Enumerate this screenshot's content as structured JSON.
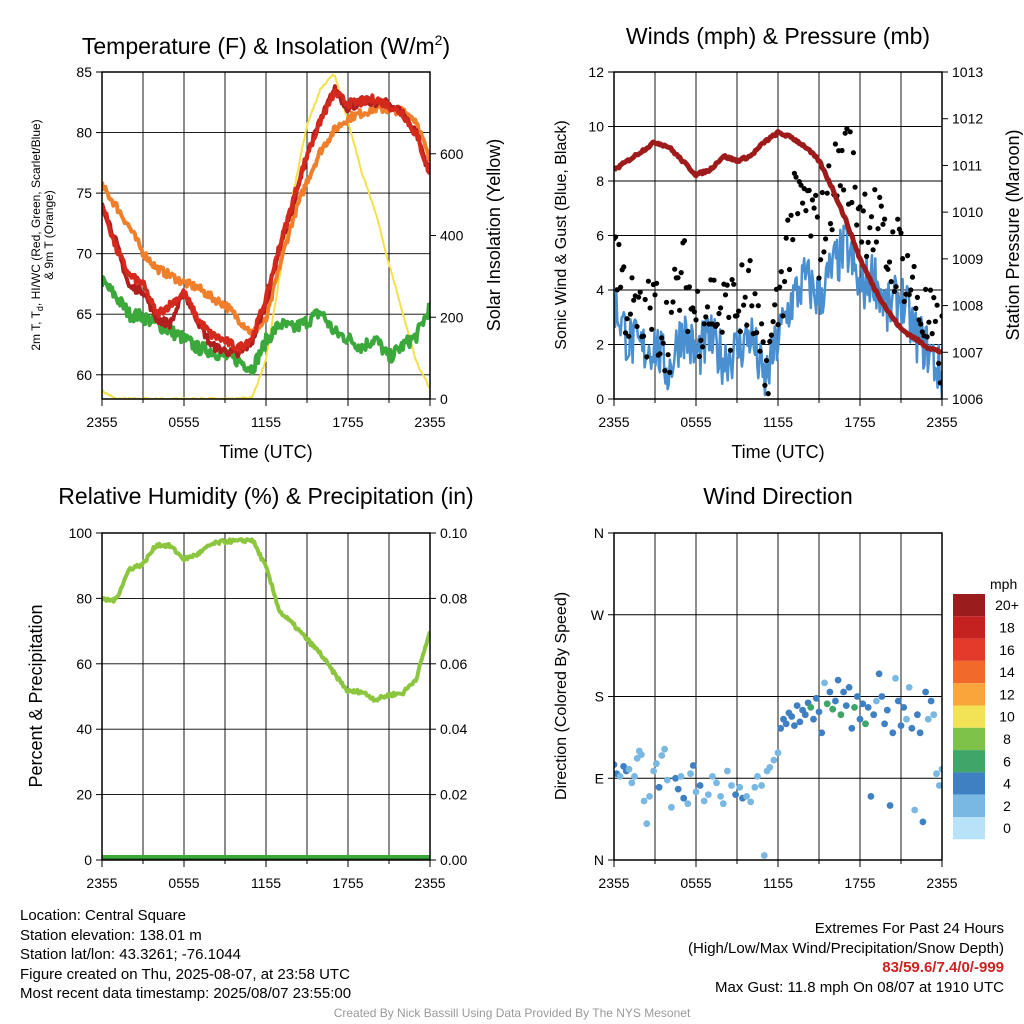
{
  "chart_data": [
    {
      "type": "line",
      "title": "Temperature (F) & Insolation (W/m²)",
      "xlabel": "Time (UTC)",
      "ylabel": "2m T, Td, HI/WC (Red, Green, Scarlet/Blue) & 9m T (Orange)",
      "ylabel_lines": [
        "2m T, T",
        "d",
        ", HI/WC (Red, Green, Scarlet/Blue)",
        "& 9m T (Orange)"
      ],
      "y2label": "Solar Insolation (Yellow)",
      "x_ticks": [
        "2355",
        "0555",
        "1155",
        "1755",
        "2355"
      ],
      "ylim": [
        58,
        85
      ],
      "y_ticks": [
        60,
        65,
        70,
        75,
        80,
        85
      ],
      "y2lim": [
        0,
        800
      ],
      "y2_ticks": [
        0,
        200,
        400,
        600
      ],
      "x": [
        0,
        1,
        2,
        3,
        4,
        5,
        6,
        7,
        8,
        9,
        10,
        11,
        12,
        13,
        14,
        15,
        16,
        17,
        18,
        19,
        20,
        21,
        22,
        23,
        24
      ],
      "series": [
        {
          "color": "#d42a1e",
          "axis": "left",
          "values": [
            74.2,
            70.5,
            68.2,
            67.5,
            65.0,
            65.8,
            66.8,
            64.6,
            63.3,
            62.8,
            62.2,
            63.1,
            66.3,
            70.6,
            74.5,
            78.2,
            81.0,
            83.3,
            82.4,
            82.5,
            82.8,
            82.2,
            81.6,
            79.8,
            76.5
          ]
        },
        {
          "color": "#b01e1e",
          "axis": "left",
          "values": [
            74.2,
            71.0,
            67.2,
            67.0,
            64.6,
            64.2,
            66.8,
            64.5,
            62.4,
            62.0,
            61.6,
            62.8,
            66.0,
            70.6,
            74.0,
            78.2,
            81.0,
            83.6,
            82.0,
            82.6,
            82.5,
            82.4,
            81.6,
            80.0,
            76.5
          ]
        },
        {
          "color": "#f07f2c",
          "axis": "left",
          "values": [
            75.6,
            74.0,
            72.2,
            70.1,
            68.8,
            68.2,
            67.6,
            67.2,
            66.4,
            65.8,
            64.6,
            63.4,
            64.5,
            69.0,
            73.0,
            76.0,
            78.5,
            80.2,
            81.2,
            81.6,
            82.0,
            81.9,
            81.8,
            81.0,
            77.6
          ]
        },
        {
          "color": "#3aa83a",
          "axis": "left",
          "values": [
            67.7,
            66.5,
            65.0,
            64.8,
            64.2,
            63.6,
            63.0,
            62.2,
            62.0,
            61.5,
            61.2,
            60.5,
            62.8,
            64.2,
            63.8,
            64.4,
            65.2,
            63.5,
            63.0,
            62.3,
            63.0,
            61.4,
            62.4,
            63.2,
            65.6
          ]
        },
        {
          "color": "#f5e04a",
          "axis": "right",
          "values": [
            20,
            0,
            0,
            0,
            0,
            0,
            0,
            0,
            0,
            0,
            0,
            5,
            95,
            300,
            505,
            670,
            760,
            795,
            680,
            555,
            460,
            330,
            210,
            90,
            25
          ]
        }
      ]
    },
    {
      "type": "line",
      "title": "Winds (mph) & Pressure (mb)",
      "xlabel": "Time (UTC)",
      "ylabel": "Sonic Wind & Gust (Blue, Black)",
      "y2label": "Station Pressure (Maroon)",
      "x_ticks": [
        "2355",
        "0555",
        "1155",
        "1755",
        "2355"
      ],
      "ylim": [
        0,
        12
      ],
      "y_ticks": [
        0,
        2,
        4,
        6,
        8,
        10,
        12
      ],
      "y2lim": [
        1006,
        1013
      ],
      "y2_ticks": [
        1006,
        1007,
        1008,
        1009,
        1010,
        1011,
        1012,
        1013
      ],
      "x": [
        0,
        1,
        2,
        3,
        4,
        5,
        6,
        7,
        8,
        9,
        10,
        11,
        12,
        13,
        14,
        15,
        16,
        17,
        18,
        19,
        20,
        21,
        22,
        23,
        24
      ],
      "series": [
        {
          "type": "line",
          "color": "#9e1b1b",
          "axis": "right",
          "values": [
            1010.9,
            1011.1,
            1011.3,
            1011.5,
            1011.4,
            1011.1,
            1010.8,
            1010.9,
            1011.2,
            1011.1,
            1011.2,
            1011.5,
            1011.7,
            1011.6,
            1011.4,
            1011.1,
            1010.5,
            1009.8,
            1009.0,
            1008.4,
            1007.9,
            1007.5,
            1007.3,
            1007.1,
            1007.0
          ]
        },
        {
          "type": "line",
          "color": "#4a8fd0",
          "axis": "left",
          "values": [
            3.6,
            2.2,
            1.8,
            2.0,
            1.0,
            2.6,
            1.6,
            2.2,
            1.5,
            1.8,
            2.4,
            0.6,
            2.2,
            3.6,
            4.4,
            3.7,
            4.8,
            5.6,
            4.0,
            4.6,
            3.2,
            3.8,
            2.4,
            1.8,
            0.8
          ]
        },
        {
          "type": "scatter",
          "color": "#000000",
          "axis": "left",
          "values": [
            5.8,
            3.4,
            2.6,
            3.2,
            2.4,
            4.6,
            3.0,
            3.6,
            3.1,
            3.4,
            3.8,
            0.6,
            3.4,
            6.6,
            7.2,
            5.8,
            7.8,
            9.0,
            7.0,
            6.6,
            5.2,
            5.4,
            3.8,
            2.6,
            1.8
          ]
        }
      ]
    },
    {
      "type": "line",
      "title": "Relative Humidity (%) & Precipitation (in)",
      "xlabel": "",
      "ylabel": "Percent & Precipitation",
      "x_ticks": [
        "2355",
        "0555",
        "1155",
        "1755",
        "2355"
      ],
      "ylim": [
        0,
        100
      ],
      "y_ticks": [
        0,
        20,
        40,
        60,
        80,
        100
      ],
      "y2lim": [
        0,
        0.1
      ],
      "y2_ticks": [
        "0.00",
        "0.02",
        "0.04",
        "0.06",
        "0.08",
        "0.10"
      ],
      "x": [
        0,
        1,
        2,
        3,
        4,
        5,
        6,
        7,
        8,
        9,
        10,
        11,
        12,
        13,
        14,
        15,
        16,
        17,
        18,
        19,
        20,
        21,
        22,
        23,
        24
      ],
      "series": [
        {
          "color": "#8cc63f",
          "axis": "left",
          "values": [
            79.5,
            79.5,
            89.0,
            90.5,
            96.5,
            96.0,
            92.0,
            93.5,
            96.5,
            97.5,
            97.5,
            98.0,
            89.5,
            76.0,
            72.0,
            67.5,
            63.0,
            57.0,
            51.5,
            51.5,
            49.0,
            50.5,
            51.0,
            55.5,
            70.0
          ]
        },
        {
          "color": "#3aa83a",
          "axis": "right",
          "values": [
            0,
            0,
            0,
            0,
            0,
            0,
            0,
            0,
            0,
            0,
            0,
            0,
            0,
            0,
            0,
            0,
            0,
            0,
            0,
            0,
            0,
            0,
            0,
            0,
            0
          ]
        }
      ]
    },
    {
      "type": "scatter",
      "title": "Wind Direction",
      "ylabel": "Direction (Colored By Speed)",
      "x_ticks": [
        "2355",
        "0555",
        "1155",
        "1755",
        "2355"
      ],
      "y_ticks": [
        "N",
        "E",
        "S",
        "W",
        "N"
      ],
      "ylim_degrees": [
        0,
        360
      ],
      "colorbar": {
        "title": "mph",
        "labels": [
          "20+",
          "18",
          "16",
          "14",
          "12",
          "10",
          "8",
          "6",
          "4",
          "2",
          "0"
        ],
        "colors": [
          "#9a1c1c",
          "#c42121",
          "#e23b2b",
          "#f16a2c",
          "#f9a53c",
          "#f2e256",
          "#7fc24a",
          "#3fa568",
          "#3e80c2",
          "#7ab8e4",
          "#b8e2f8"
        ]
      },
      "points": [
        {
          "x": 0.0,
          "deg": 105,
          "speed": 3
        },
        {
          "x": 0.2,
          "deg": 95,
          "speed": 3
        },
        {
          "x": 0.45,
          "deg": 92,
          "speed": 2
        },
        {
          "x": 0.7,
          "deg": 103,
          "speed": 3
        },
        {
          "x": 0.9,
          "deg": 98,
          "speed": 3
        },
        {
          "x": 1.1,
          "deg": 100,
          "speed": 2
        },
        {
          "x": 1.3,
          "deg": 85,
          "speed": 2
        },
        {
          "x": 1.5,
          "deg": 92,
          "speed": 2
        },
        {
          "x": 1.7,
          "deg": 112,
          "speed": 2
        },
        {
          "x": 1.85,
          "deg": 120,
          "speed": 2
        },
        {
          "x": 2.0,
          "deg": 116,
          "speed": 2
        },
        {
          "x": 2.2,
          "deg": 65,
          "speed": 1
        },
        {
          "x": 2.4,
          "deg": 40,
          "speed": 1
        },
        {
          "x": 2.6,
          "deg": 70,
          "speed": 1
        },
        {
          "x": 2.9,
          "deg": 98,
          "speed": 2
        },
        {
          "x": 3.1,
          "deg": 106,
          "speed": 2
        },
        {
          "x": 3.3,
          "deg": 80,
          "speed": 3
        },
        {
          "x": 3.5,
          "deg": 115,
          "speed": 2
        },
        {
          "x": 3.7,
          "deg": 122,
          "speed": 2
        },
        {
          "x": 3.9,
          "deg": 88,
          "speed": 2
        },
        {
          "x": 4.2,
          "deg": 58,
          "speed": 2
        },
        {
          "x": 4.5,
          "deg": 90,
          "speed": 3
        },
        {
          "x": 4.7,
          "deg": 78,
          "speed": 3
        },
        {
          "x": 4.9,
          "deg": 92,
          "speed": 2
        },
        {
          "x": 5.1,
          "deg": 68,
          "speed": 3
        },
        {
          "x": 5.4,
          "deg": 62,
          "speed": 2
        },
        {
          "x": 5.6,
          "deg": 95,
          "speed": 2
        },
        {
          "x": 5.8,
          "deg": 104,
          "speed": 3
        },
        {
          "x": 6.0,
          "deg": 75,
          "speed": 1
        },
        {
          "x": 6.3,
          "deg": 82,
          "speed": 3
        },
        {
          "x": 6.6,
          "deg": 65,
          "speed": 2
        },
        {
          "x": 6.9,
          "deg": 72,
          "speed": 2
        },
        {
          "x": 7.2,
          "deg": 92,
          "speed": 2
        },
        {
          "x": 7.5,
          "deg": 85,
          "speed": 1
        },
        {
          "x": 7.8,
          "deg": 70,
          "speed": 1
        },
        {
          "x": 8.0,
          "deg": 62,
          "speed": 1
        },
        {
          "x": 8.3,
          "deg": 98,
          "speed": 1
        },
        {
          "x": 8.6,
          "deg": 82,
          "speed": 2
        },
        {
          "x": 8.9,
          "deg": 72,
          "speed": 3
        },
        {
          "x": 9.2,
          "deg": 80,
          "speed": 2
        },
        {
          "x": 9.4,
          "deg": 68,
          "speed": 3
        },
        {
          "x": 9.7,
          "deg": 70,
          "speed": 2
        },
        {
          "x": 10.0,
          "deg": 64,
          "speed": 2
        },
        {
          "x": 10.3,
          "deg": 80,
          "speed": 1
        },
        {
          "x": 10.5,
          "deg": 92,
          "speed": 1
        },
        {
          "x": 10.8,
          "deg": 82,
          "speed": 1
        },
        {
          "x": 11.0,
          "deg": 5,
          "speed": 1
        },
        {
          "x": 11.2,
          "deg": 98,
          "speed": 1
        },
        {
          "x": 11.4,
          "deg": 102,
          "speed": 1
        },
        {
          "x": 11.7,
          "deg": 110,
          "speed": 1
        },
        {
          "x": 12.0,
          "deg": 118,
          "speed": 1
        },
        {
          "x": 12.2,
          "deg": 145,
          "speed": 3
        },
        {
          "x": 12.4,
          "deg": 155,
          "speed": 4
        },
        {
          "x": 12.6,
          "deg": 150,
          "speed": 3
        },
        {
          "x": 12.8,
          "deg": 162,
          "speed": 4
        },
        {
          "x": 13.0,
          "deg": 158,
          "speed": 3
        },
        {
          "x": 13.2,
          "deg": 148,
          "speed": 4
        },
        {
          "x": 13.4,
          "deg": 170,
          "speed": 3
        },
        {
          "x": 13.6,
          "deg": 152,
          "speed": 4
        },
        {
          "x": 13.8,
          "deg": 165,
          "speed": 4
        },
        {
          "x": 14.0,
          "deg": 160,
          "speed": 3
        },
        {
          "x": 14.2,
          "deg": 173,
          "speed": 4
        },
        {
          "x": 14.4,
          "deg": 168,
          "speed": 6
        },
        {
          "x": 14.6,
          "deg": 155,
          "speed": 4
        },
        {
          "x": 14.8,
          "deg": 178,
          "speed": 4
        },
        {
          "x": 15.0,
          "deg": 163,
          "speed": 3
        },
        {
          "x": 15.2,
          "deg": 140,
          "speed": 3
        },
        {
          "x": 15.4,
          "deg": 195,
          "speed": 2
        },
        {
          "x": 15.6,
          "deg": 172,
          "speed": 6
        },
        {
          "x": 15.8,
          "deg": 185,
          "speed": 4
        },
        {
          "x": 16.0,
          "deg": 166,
          "speed": 6
        },
        {
          "x": 16.2,
          "deg": 175,
          "speed": 4
        },
        {
          "x": 16.4,
          "deg": 198,
          "speed": 3
        },
        {
          "x": 16.6,
          "deg": 160,
          "speed": 6
        },
        {
          "x": 16.8,
          "deg": 185,
          "speed": 4
        },
        {
          "x": 17.0,
          "deg": 170,
          "speed": 4
        },
        {
          "x": 17.2,
          "deg": 190,
          "speed": 4
        },
        {
          "x": 17.4,
          "deg": 145,
          "speed": 3
        },
        {
          "x": 17.6,
          "deg": 168,
          "speed": 6
        },
        {
          "x": 17.8,
          "deg": 180,
          "speed": 3
        },
        {
          "x": 18.0,
          "deg": 155,
          "speed": 4
        },
        {
          "x": 18.2,
          "deg": 172,
          "speed": 3
        },
        {
          "x": 18.4,
          "deg": 150,
          "speed": 6
        },
        {
          "x": 18.6,
          "deg": 168,
          "speed": 4
        },
        {
          "x": 18.8,
          "deg": 70,
          "speed": 3
        },
        {
          "x": 19.0,
          "deg": 160,
          "speed": 3
        },
        {
          "x": 19.2,
          "deg": 175,
          "speed": 2
        },
        {
          "x": 19.4,
          "deg": 205,
          "speed": 3
        },
        {
          "x": 19.6,
          "deg": 180,
          "speed": 3
        },
        {
          "x": 19.8,
          "deg": 150,
          "speed": 4
        },
        {
          "x": 20.0,
          "deg": 165,
          "speed": 3
        },
        {
          "x": 20.2,
          "deg": 60,
          "speed": 3
        },
        {
          "x": 20.4,
          "deg": 140,
          "speed": 3
        },
        {
          "x": 20.6,
          "deg": 200,
          "speed": 2
        },
        {
          "x": 20.8,
          "deg": 175,
          "speed": 3
        },
        {
          "x": 21.0,
          "deg": 148,
          "speed": 4
        },
        {
          "x": 21.2,
          "deg": 168,
          "speed": 3
        },
        {
          "x": 21.4,
          "deg": 155,
          "speed": 2
        },
        {
          "x": 21.6,
          "deg": 190,
          "speed": 2
        },
        {
          "x": 21.8,
          "deg": 145,
          "speed": 3
        },
        {
          "x": 22.0,
          "deg": 55,
          "speed": 2
        },
        {
          "x": 22.2,
          "deg": 160,
          "speed": 3
        },
        {
          "x": 22.4,
          "deg": 140,
          "speed": 4
        },
        {
          "x": 22.6,
          "deg": 42,
          "speed": 3
        },
        {
          "x": 22.8,
          "deg": 185,
          "speed": 3
        },
        {
          "x": 23.0,
          "deg": 155,
          "speed": 2
        },
        {
          "x": 23.2,
          "deg": 175,
          "speed": 3
        },
        {
          "x": 23.4,
          "deg": 160,
          "speed": 1
        },
        {
          "x": 23.6,
          "deg": 95,
          "speed": 2
        },
        {
          "x": 23.8,
          "deg": 82,
          "speed": 2
        },
        {
          "x": 24.0,
          "deg": 100,
          "speed": 2
        }
      ]
    }
  ],
  "info": {
    "location": "Location: Central Square",
    "elevation": "Station elevation: 138.01 m",
    "latlon": "Station lat/lon: 43.3261; -76.1044",
    "created": "Figure created on Thu, 2025-08-07, at 23:58 UTC",
    "recent": "Most recent data timestamp: 2025/08/07 23:55:00"
  },
  "extremes": {
    "title": "Extremes For Past 24 Hours",
    "legend": "(High/Low/Max Wind/Precipitation/Snow Depth)",
    "values": "83/59.6/7.4/0/-999",
    "gust": "Max Gust: 11.8 mph On 08/07 at 1910 UTC"
  },
  "credit": "Created By Nick Bassill Using Data Provided By The NYS Mesonet"
}
